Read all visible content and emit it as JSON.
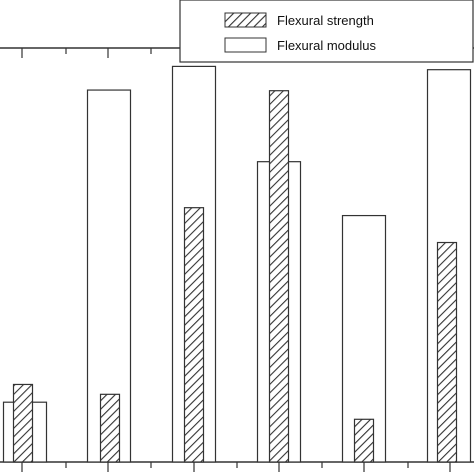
{
  "chart_data": {
    "type": "bar",
    "categories": [
      "",
      "",
      "",
      "",
      "",
      ""
    ],
    "series": [
      {
        "name": "Flexural strength",
        "values": [
          11.8,
          10.3,
          38.7,
          56.5,
          6.5,
          33.4
        ],
        "pattern": "hatched"
      },
      {
        "name": "Flexural modulus",
        "values": [
          9.1,
          56.6,
          60.2,
          45.7,
          37.5,
          59.7
        ],
        "pattern": "open"
      }
    ],
    "ylim": [
      0,
      63
    ],
    "grid": false,
    "legend_position": "top-right",
    "colors": {
      "stroke": "#333333",
      "background": "#ffffff"
    }
  }
}
